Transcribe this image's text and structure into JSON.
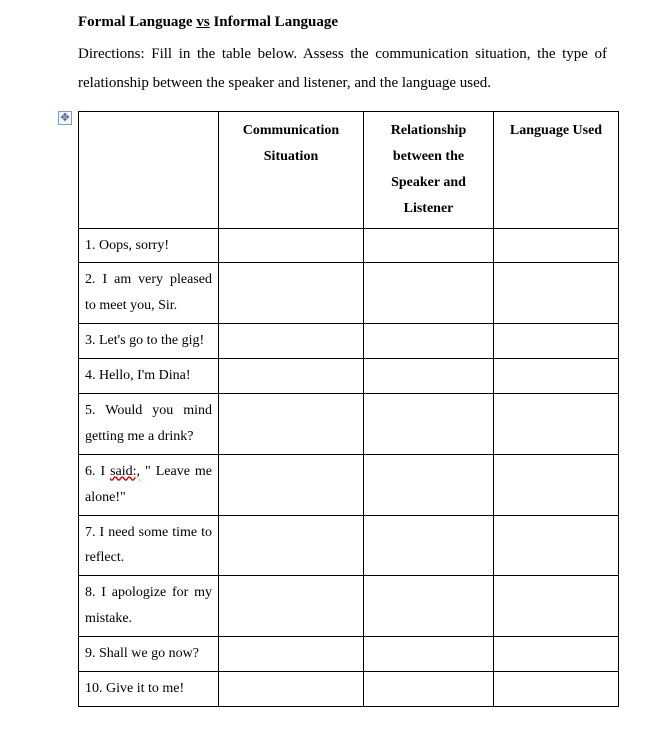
{
  "title_prefix": "Formal Language ",
  "title_vs": "vs",
  "title_suffix": " Informal Language",
  "directions": "Directions: Fill in the table below. Assess the communication situation, the type of relationship between the speaker and listener, and the language used.",
  "anchor_glyph": "✥",
  "columns": {
    "prompt": "",
    "communication": "Communication Situation",
    "relationship": "Relationship between the Speaker and Listener",
    "language": "Language Used"
  },
  "rows": [
    {
      "prompt": "1. Oops, sorry!",
      "communication": "",
      "relationship": "",
      "language": ""
    },
    {
      "prompt": "2. I am very pleased to meet you, Sir.",
      "communication": "",
      "relationship": "",
      "language": ""
    },
    {
      "prompt": "3. Let's go to the gig!",
      "communication": "",
      "relationship": "",
      "language": ""
    },
    {
      "prompt": "4. Hello, I'm Dina!",
      "communication": "",
      "relationship": "",
      "language": ""
    },
    {
      "prompt": "5. Would you mind getting me a drink?",
      "communication": "",
      "relationship": "",
      "language": ""
    },
    {
      "prompt_pre": "6. I ",
      "prompt_err": "said:,",
      "prompt_post": " \" Leave me alone!\"",
      "communication": "",
      "relationship": "",
      "language": ""
    },
    {
      "prompt": "7. I need some time to reflect.",
      "communication": "",
      "relationship": "",
      "language": ""
    },
    {
      "prompt": "8. I apologize for my mistake.",
      "communication": "",
      "relationship": "",
      "language": ""
    },
    {
      "prompt": "9. Shall we go now?",
      "communication": "",
      "relationship": "",
      "language": ""
    },
    {
      "prompt": "10. Give it to me!",
      "communication": "",
      "relationship": "",
      "language": ""
    }
  ]
}
